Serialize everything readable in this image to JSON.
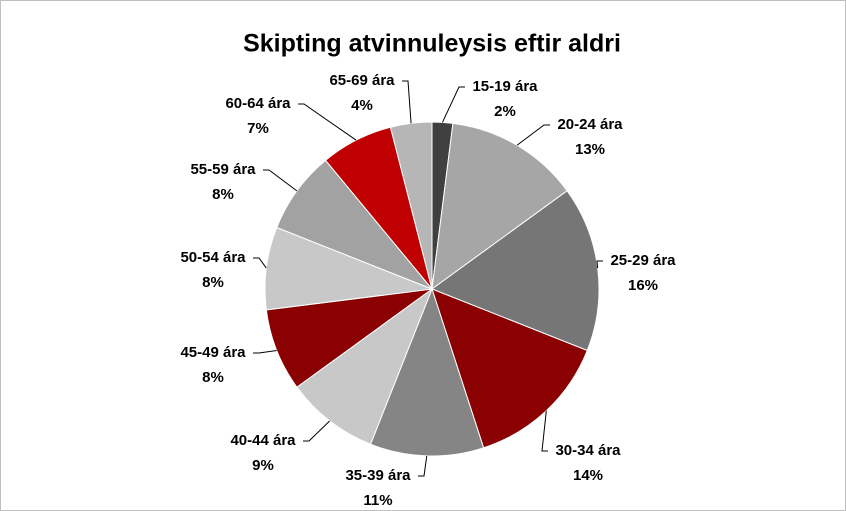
{
  "chart_data": {
    "type": "pie",
    "title": "Skipting atvinnuleysis eftir aldri",
    "categories": [
      "15-19 ára",
      "20-24 ára",
      "25-29 ára",
      "30-34 ára",
      "35-39 ára",
      "40-44 ára",
      "45-49 ára",
      "50-54 ára",
      "55-59 ára",
      "60-64 ára",
      "65-69 ára"
    ],
    "values": [
      2,
      13,
      16,
      14,
      11,
      9,
      8,
      8,
      8,
      7,
      4
    ],
    "value_labels": [
      "2%",
      "13%",
      "16%",
      "14%",
      "11%",
      "9%",
      "8%",
      "8%",
      "8%",
      "7%",
      "4%"
    ],
    "colors": [
      "#404040",
      "#a6a6a6",
      "#767676",
      "#8b0000",
      "#858585",
      "#c8c8c8",
      "#8b0000",
      "#c8c8c8",
      "#a2a2a2",
      "#c00000",
      "#b6b6b6"
    ]
  }
}
